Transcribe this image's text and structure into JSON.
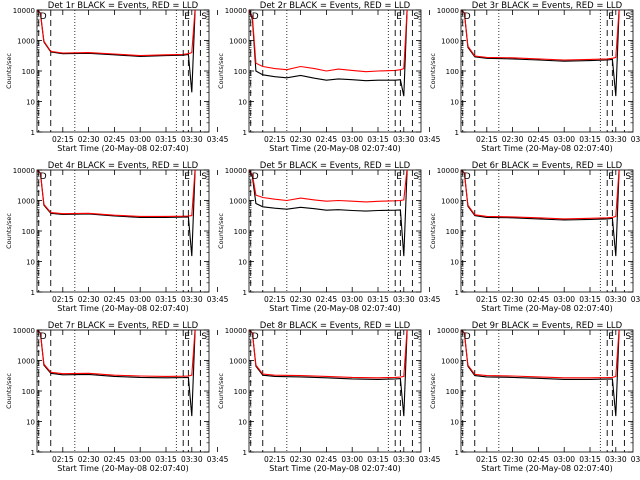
{
  "colors": {
    "events": "#000000",
    "lld": "#ff0000",
    "axis": "#000000"
  },
  "chart_data": [
    {
      "type": "line",
      "title": "Det 1r BLACK = Events, RED = LLD",
      "xlabel": "Start Time (20-May-08 02:07:40)",
      "ylabel": "Counts/sec",
      "yscale": "log",
      "ylim": [
        1,
        10000
      ],
      "x_unit": "minutes after 02:07:40",
      "xlim": [
        0,
        100
      ],
      "x_tick_labels": [
        "02:15",
        "02:30",
        "02:45",
        "03:00",
        "03:15",
        "03:30",
        "03:45"
      ],
      "y_tick_labels": [
        "1",
        "10",
        "100",
        "1000",
        "10000"
      ],
      "markers": [
        {
          "label": "D",
          "x": 1
        },
        {
          "label": "E",
          "x": 85
        },
        {
          "label": "S",
          "x": 95
        }
      ],
      "series": [
        {
          "name": "Events",
          "color": "#000000",
          "x": [
            0,
            2,
            4,
            8,
            15,
            30,
            45,
            60,
            75,
            85,
            88,
            90,
            92,
            93
          ],
          "y": [
            10000,
            8000,
            900,
            420,
            370,
            380,
            340,
            300,
            320,
            330,
            350,
            20,
            12000,
            12000
          ]
        },
        {
          "name": "LLD",
          "color": "#ff0000",
          "x": [
            0,
            2,
            4,
            8,
            15,
            30,
            45,
            60,
            75,
            85,
            88,
            90,
            92,
            93
          ],
          "y": [
            10000,
            8000,
            950,
            440,
            390,
            400,
            360,
            320,
            340,
            350,
            370,
            400,
            12000,
            12000
          ]
        }
      ]
    },
    {
      "type": "line",
      "title": "Det 2r BLACK = Events, RED = LLD",
      "xlabel": "Start Time (20-May-08 02:07:40)",
      "ylabel": "Counts/sec",
      "yscale": "log",
      "ylim": [
        1,
        10000
      ],
      "x_unit": "minutes after 02:07:40",
      "xlim": [
        0,
        100
      ],
      "x_tick_labels": [
        "02:15",
        "02:30",
        "02:45",
        "03:00",
        "03:15",
        "03:30",
        "03:45"
      ],
      "y_tick_labels": [
        "1",
        "10",
        "100",
        "1000",
        "10000"
      ],
      "markers": [
        {
          "label": "D",
          "x": 1
        },
        {
          "label": "E",
          "x": 85
        },
        {
          "label": "S",
          "x": 95
        }
      ],
      "series": [
        {
          "name": "Events",
          "color": "#000000",
          "x": [
            0,
            2,
            4,
            8,
            15,
            22,
            30,
            38,
            45,
            52,
            60,
            68,
            75,
            85,
            88,
            90,
            92,
            93
          ],
          "y": [
            10000,
            5000,
            100,
            75,
            65,
            60,
            72,
            58,
            50,
            55,
            52,
            48,
            50,
            50,
            52,
            15,
            12000,
            12000
          ]
        },
        {
          "name": "LLD",
          "color": "#ff0000",
          "x": [
            0,
            2,
            4,
            8,
            15,
            22,
            30,
            38,
            45,
            52,
            60,
            68,
            75,
            85,
            88,
            90,
            92,
            93
          ],
          "y": [
            10000,
            6000,
            180,
            140,
            120,
            110,
            140,
            120,
            100,
            115,
            105,
            95,
            100,
            105,
            110,
            120,
            12000,
            12000
          ]
        }
      ]
    },
    {
      "type": "line",
      "title": "Det 3r BLACK = Events, RED = LLD",
      "xlabel": "Start Time (20-May-08 02:07:40)",
      "ylabel": "Counts/sec",
      "yscale": "log",
      "ylim": [
        1,
        10000
      ],
      "x_unit": "minutes after 02:07:40",
      "xlim": [
        0,
        100
      ],
      "x_tick_labels": [
        "02:15",
        "02:30",
        "02:45",
        "03:00",
        "03:15",
        "03:30",
        "03:45"
      ],
      "y_tick_labels": [
        "1",
        "10",
        "100",
        "1000",
        "10000"
      ],
      "markers": [
        {
          "label": "D",
          "x": 1
        },
        {
          "label": "E",
          "x": 85
        },
        {
          "label": "S",
          "x": 95
        }
      ],
      "series": [
        {
          "name": "Events",
          "color": "#000000",
          "x": [
            0,
            2,
            4,
            8,
            15,
            30,
            45,
            60,
            75,
            85,
            88,
            90,
            92,
            93
          ],
          "y": [
            10000,
            8000,
            600,
            290,
            260,
            250,
            230,
            210,
            220,
            230,
            240,
            15,
            12000,
            12000
          ]
        },
        {
          "name": "LLD",
          "color": "#ff0000",
          "x": [
            0,
            2,
            4,
            8,
            15,
            30,
            45,
            60,
            75,
            85,
            88,
            90,
            92,
            93
          ],
          "y": [
            10000,
            8000,
            650,
            310,
            280,
            270,
            250,
            230,
            240,
            250,
            260,
            280,
            12000,
            12000
          ]
        }
      ]
    },
    {
      "type": "line",
      "title": "Det 4r BLACK = Events, RED = LLD",
      "xlabel": "Start Time (20-May-08 02:07:40)",
      "ylabel": "Counts/sec",
      "yscale": "log",
      "ylim": [
        1,
        10000
      ],
      "x_unit": "minutes after 02:07:40",
      "xlim": [
        0,
        100
      ],
      "x_tick_labels": [
        "02:15",
        "02:30",
        "02:45",
        "03:00",
        "03:15",
        "03:30",
        "03:45"
      ],
      "y_tick_labels": [
        "1",
        "10",
        "100",
        "1000",
        "10000"
      ],
      "markers": [
        {
          "label": "D",
          "x": 1
        },
        {
          "label": "E",
          "x": 85
        },
        {
          "label": "S",
          "x": 95
        }
      ],
      "series": [
        {
          "name": "Events",
          "color": "#000000",
          "x": [
            0,
            2,
            4,
            8,
            15,
            30,
            45,
            60,
            75,
            85,
            88,
            90,
            92,
            93
          ],
          "y": [
            10000,
            8000,
            700,
            380,
            350,
            360,
            310,
            280,
            280,
            285,
            290,
            15,
            12000,
            12000
          ]
        },
        {
          "name": "LLD",
          "color": "#ff0000",
          "x": [
            0,
            2,
            4,
            8,
            15,
            30,
            45,
            60,
            75,
            85,
            88,
            90,
            92,
            93
          ],
          "y": [
            10000,
            8000,
            750,
            400,
            370,
            380,
            330,
            300,
            300,
            305,
            310,
            320,
            12000,
            12000
          ]
        }
      ]
    },
    {
      "type": "line",
      "title": "Det 5r BLACK = Events, RED = LLD",
      "xlabel": "Start Time (20-May-08 02:07:40)",
      "ylabel": "Counts/sec",
      "yscale": "log",
      "ylim": [
        1,
        10000
      ],
      "x_unit": "minutes after 02:07:40",
      "xlim": [
        0,
        100
      ],
      "x_tick_labels": [
        "02:15",
        "02:30",
        "02:45",
        "03:00",
        "03:15",
        "03:30",
        "03:45"
      ],
      "y_tick_labels": [
        "1",
        "10",
        "100",
        "1000",
        "10000"
      ],
      "markers": [
        {
          "label": "D",
          "x": 1
        },
        {
          "label": "E",
          "x": 85
        },
        {
          "label": "S",
          "x": 95
        }
      ],
      "series": [
        {
          "name": "Events",
          "color": "#000000",
          "x": [
            0,
            2,
            4,
            8,
            15,
            22,
            30,
            38,
            45,
            52,
            60,
            68,
            75,
            85,
            88,
            90,
            92,
            93
          ],
          "y": [
            10000,
            6000,
            800,
            620,
            560,
            520,
            600,
            540,
            480,
            500,
            470,
            450,
            470,
            480,
            490,
            15,
            12000,
            12000
          ]
        },
        {
          "name": "LLD",
          "color": "#ff0000",
          "x": [
            0,
            2,
            4,
            8,
            15,
            22,
            30,
            38,
            45,
            52,
            60,
            68,
            75,
            85,
            88,
            90,
            92,
            93
          ],
          "y": [
            10000,
            7000,
            1500,
            1250,
            1100,
            1000,
            1200,
            1050,
            950,
            1000,
            950,
            900,
            940,
            980,
            1000,
            1050,
            12000,
            12000
          ]
        }
      ]
    },
    {
      "type": "line",
      "title": "Det 6r BLACK = Events, RED = LLD",
      "xlabel": "Start Time (20-May-08 02:07:40)",
      "ylabel": "Counts/sec",
      "yscale": "log",
      "ylim": [
        1,
        10000
      ],
      "x_unit": "minutes after 02:07:40",
      "xlim": [
        0,
        100
      ],
      "x_tick_labels": [
        "02:15",
        "02:30",
        "02:45",
        "03:00",
        "03:15",
        "03:30",
        "03:45"
      ],
      "y_tick_labels": [
        "1",
        "10",
        "100",
        "1000",
        "10000"
      ],
      "markers": [
        {
          "label": "D",
          "x": 1
        },
        {
          "label": "E",
          "x": 85
        },
        {
          "label": "S",
          "x": 95
        }
      ],
      "series": [
        {
          "name": "Events",
          "color": "#000000",
          "x": [
            0,
            2,
            4,
            8,
            15,
            30,
            45,
            60,
            75,
            85,
            88,
            90,
            92,
            93
          ],
          "y": [
            10000,
            8000,
            650,
            320,
            280,
            270,
            250,
            230,
            240,
            250,
            260,
            15,
            12000,
            12000
          ]
        },
        {
          "name": "LLD",
          "color": "#ff0000",
          "x": [
            0,
            2,
            4,
            8,
            15,
            30,
            45,
            60,
            75,
            85,
            88,
            90,
            92,
            93
          ],
          "y": [
            10000,
            8000,
            700,
            340,
            300,
            290,
            270,
            250,
            260,
            270,
            280,
            300,
            12000,
            12000
          ]
        }
      ]
    },
    {
      "type": "line",
      "title": "Det 7r BLACK = Events, RED = LLD",
      "xlabel": "Start Time (20-May-08 02:07:40)",
      "ylabel": "Counts/sec",
      "yscale": "log",
      "ylim": [
        1,
        10000
      ],
      "x_unit": "minutes after 02:07:40",
      "xlim": [
        0,
        100
      ],
      "x_tick_labels": [
        "02:15",
        "02:30",
        "02:45",
        "03:00",
        "03:15",
        "03:30",
        "03:45"
      ],
      "y_tick_labels": [
        "1",
        "10",
        "100",
        "1000",
        "10000"
      ],
      "markers": [
        {
          "label": "D",
          "x": 1
        },
        {
          "label": "E",
          "x": 85
        },
        {
          "label": "S",
          "x": 95
        }
      ],
      "series": [
        {
          "name": "Events",
          "color": "#000000",
          "x": [
            0,
            2,
            4,
            8,
            15,
            30,
            45,
            60,
            75,
            85,
            88,
            90,
            92,
            93
          ],
          "y": [
            10000,
            8000,
            700,
            380,
            340,
            350,
            300,
            280,
            270,
            275,
            280,
            15,
            12000,
            12000
          ]
        },
        {
          "name": "LLD",
          "color": "#ff0000",
          "x": [
            0,
            2,
            4,
            8,
            15,
            30,
            45,
            60,
            75,
            85,
            88,
            90,
            92,
            93
          ],
          "y": [
            10000,
            8000,
            760,
            410,
            370,
            380,
            330,
            310,
            300,
            305,
            310,
            330,
            12000,
            12000
          ]
        }
      ]
    },
    {
      "type": "line",
      "title": "Det 8r BLACK = Events, RED = LLD",
      "xlabel": "Start Time (20-May-08 02:07:40)",
      "ylabel": "Counts/sec",
      "yscale": "log",
      "ylim": [
        1,
        10000
      ],
      "x_unit": "minutes after 02:07:40",
      "xlim": [
        0,
        100
      ],
      "x_tick_labels": [
        "02:15",
        "02:30",
        "02:45",
        "03:00",
        "03:15",
        "03:30",
        "03:45"
      ],
      "y_tick_labels": [
        "1",
        "10",
        "100",
        "1000",
        "10000"
      ],
      "markers": [
        {
          "label": "D",
          "x": 1
        },
        {
          "label": "E",
          "x": 85
        },
        {
          "label": "S",
          "x": 95
        }
      ],
      "series": [
        {
          "name": "Events",
          "color": "#000000",
          "x": [
            0,
            2,
            4,
            8,
            15,
            30,
            45,
            60,
            75,
            85,
            88,
            90,
            92,
            93
          ],
          "y": [
            10000,
            8000,
            650,
            330,
            300,
            290,
            270,
            250,
            240,
            250,
            255,
            15,
            12000,
            12000
          ]
        },
        {
          "name": "LLD",
          "color": "#ff0000",
          "x": [
            0,
            2,
            4,
            8,
            15,
            30,
            45,
            60,
            75,
            85,
            88,
            90,
            92,
            93
          ],
          "y": [
            10000,
            8000,
            700,
            360,
            330,
            320,
            300,
            280,
            270,
            280,
            285,
            300,
            12000,
            12000
          ]
        }
      ]
    },
    {
      "type": "line",
      "title": "Det 9r BLACK = Events, RED = LLD",
      "xlabel": "Start Time (20-May-08 02:07:40)",
      "ylabel": "Counts/sec",
      "yscale": "log",
      "ylim": [
        1,
        10000
      ],
      "x_unit": "minutes after 02:07:40",
      "xlim": [
        0,
        100
      ],
      "x_tick_labels": [
        "02:15",
        "02:30",
        "02:45",
        "03:00",
        "03:15",
        "03:30",
        "03:45"
      ],
      "y_tick_labels": [
        "1",
        "10",
        "100",
        "1000",
        "10000"
      ],
      "markers": [
        {
          "label": "D",
          "x": 1
        },
        {
          "label": "E",
          "x": 85
        },
        {
          "label": "S",
          "x": 95
        }
      ],
      "series": [
        {
          "name": "Events",
          "color": "#000000",
          "x": [
            0,
            2,
            4,
            8,
            15,
            30,
            45,
            60,
            75,
            85,
            88,
            90,
            92,
            93
          ],
          "y": [
            10000,
            8000,
            650,
            320,
            290,
            280,
            260,
            240,
            240,
            245,
            250,
            15,
            12000,
            12000
          ]
        },
        {
          "name": "LLD",
          "color": "#ff0000",
          "x": [
            0,
            2,
            4,
            8,
            15,
            30,
            45,
            60,
            75,
            85,
            88,
            90,
            92,
            93
          ],
          "y": [
            10000,
            8000,
            700,
            350,
            320,
            310,
            290,
            270,
            270,
            275,
            280,
            300,
            12000,
            12000
          ]
        }
      ]
    }
  ]
}
